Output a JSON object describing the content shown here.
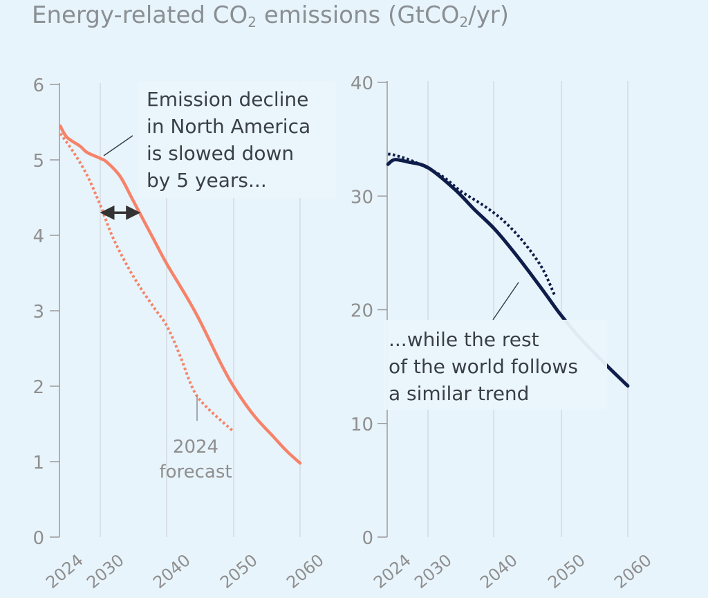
{
  "title": {
    "prefix": "Energy-related CO",
    "subscript": "2",
    "middle": " emissions (GtCO",
    "subscript2": "2",
    "suffix": "/yr)"
  },
  "colors": {
    "background": "#e8f4fb",
    "north_america": "#f5836a",
    "rest_of_world": "#0f1d4a",
    "gridline": "#cfd4d8",
    "axis": "#9a9a9a",
    "tick_text": "#8f8f8f",
    "annotation_text": "#3a3f47"
  },
  "chart_data": [
    {
      "type": "line",
      "xlim": [
        2019,
        2060
      ],
      "ylim": [
        0,
        6
      ],
      "x_ticks": [
        "2024",
        "2030",
        "2040",
        "2050",
        "2060"
      ],
      "y_ticks": [
        "0",
        "1",
        "2",
        "3",
        "4",
        "5",
        "6"
      ],
      "grid": "vertical",
      "series": [
        {
          "style": "solid",
          "points": [
            [
              2024,
              5.45
            ],
            [
              2025,
              5.3
            ],
            [
              2027,
              5.18
            ],
            [
              2028,
              5.1
            ],
            [
              2030,
              5.02
            ],
            [
              2031,
              4.97
            ],
            [
              2033,
              4.78
            ],
            [
              2035,
              4.45
            ],
            [
              2038,
              3.95
            ],
            [
              2040,
              3.62
            ],
            [
              2043,
              3.18
            ],
            [
              2045,
              2.86
            ],
            [
              2048,
              2.32
            ],
            [
              2050,
              2.0
            ],
            [
              2053,
              1.62
            ],
            [
              2056,
              1.33
            ],
            [
              2058,
              1.14
            ],
            [
              2060,
              0.98
            ]
          ]
        },
        {
          "name": "2024 forecast",
          "style": "dotted",
          "points": [
            [
              2024,
              5.35
            ],
            [
              2026,
              5.1
            ],
            [
              2028,
              4.8
            ],
            [
              2030,
              4.4
            ],
            [
              2032,
              3.95
            ],
            [
              2035,
              3.45
            ],
            [
              2038,
              3.05
            ],
            [
              2040,
              2.8
            ],
            [
              2042,
              2.4
            ],
            [
              2044,
              1.95
            ],
            [
              2046,
              1.72
            ],
            [
              2050,
              1.4
            ]
          ]
        }
      ],
      "annotations": [
        {
          "text_lines": [
            "Emission decline",
            "in North America",
            "is slowed down",
            "by 5 years..."
          ]
        },
        {
          "text_lines": [
            "2024",
            "forecast"
          ]
        }
      ],
      "arrow": {
        "from": [
          2030.5,
          4.3
        ],
        "to": [
          2035.5,
          4.3
        ]
      }
    },
    {
      "type": "line",
      "xlim": [
        2024,
        2060
      ],
      "ylim": [
        0,
        40
      ],
      "x_ticks": [
        "2024",
        "2030",
        "2040",
        "2050",
        "2060"
      ],
      "y_ticks": [
        "0",
        "10",
        "20",
        "30",
        "40"
      ],
      "grid": "vertical",
      "series": [
        {
          "style": "solid",
          "points": [
            [
              2024,
              32.8
            ],
            [
              2025,
              33.2
            ],
            [
              2027,
              33.0
            ],
            [
              2030,
              32.5
            ],
            [
              2034,
              30.6
            ],
            [
              2037,
              28.8
            ],
            [
              2040,
              27.1
            ],
            [
              2043,
              25.0
            ],
            [
              2046,
              22.7
            ],
            [
              2048,
              21.1
            ],
            [
              2050,
              19.5
            ],
            [
              2053,
              17.4
            ],
            [
              2057,
              15.0
            ],
            [
              2060,
              13.3
            ]
          ]
        },
        {
          "style": "dotted",
          "points": [
            [
              2024,
              33.7
            ],
            [
              2025,
              33.6
            ],
            [
              2028,
              33.0
            ],
            [
              2032,
              31.8
            ],
            [
              2035,
              30.4
            ],
            [
              2038,
              29.3
            ],
            [
              2041,
              28.0
            ],
            [
              2044,
              26.2
            ],
            [
              2047,
              23.8
            ],
            [
              2049,
              21.3
            ]
          ]
        }
      ],
      "annotations": [
        {
          "text_lines": [
            "...while the rest",
            "of the world follows",
            "a similar trend"
          ]
        }
      ]
    }
  ]
}
